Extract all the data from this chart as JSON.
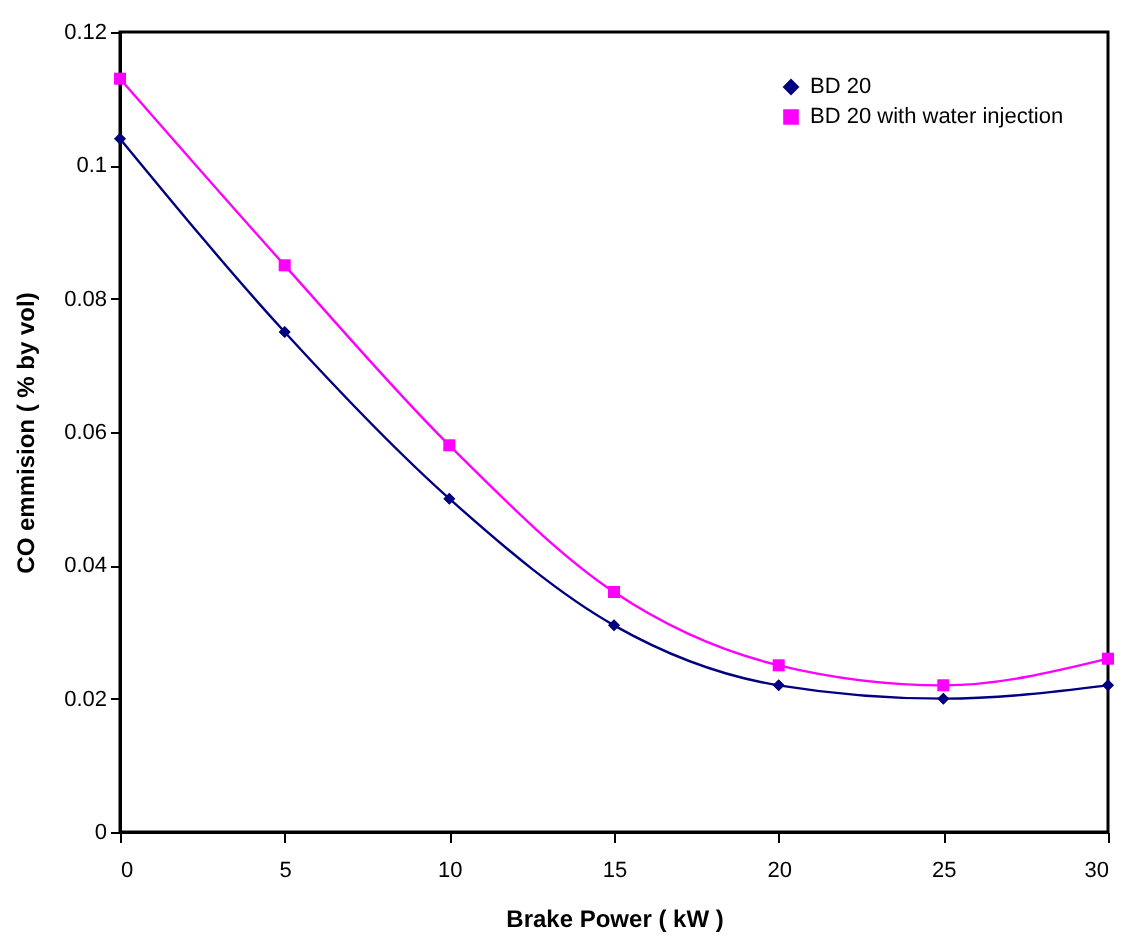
{
  "chart_data": {
    "type": "line",
    "xlabel": "Brake Power ( kW )",
    "ylabel": "CO emmision ( % by vol)",
    "x": [
      0,
      5,
      10,
      15,
      20,
      25,
      30
    ],
    "series": [
      {
        "name": "BD 20",
        "color": "#000080",
        "marker": "diamond",
        "values": [
          0.104,
          0.075,
          0.05,
          0.031,
          0.022,
          0.02,
          0.022
        ]
      },
      {
        "name": "BD 20 with water injection",
        "color": "#ff00ff",
        "marker": "square",
        "values": [
          0.113,
          0.085,
          0.058,
          0.036,
          0.025,
          0.022,
          0.026
        ]
      }
    ],
    "xlim": [
      0,
      30
    ],
    "xticks": [
      0,
      5,
      10,
      15,
      20,
      25,
      30
    ],
    "ylim": [
      0,
      0.12
    ],
    "yticks": [
      0,
      0.02,
      0.04,
      0.06,
      0.08,
      0.1,
      0.12
    ],
    "grid": false,
    "legend": "top right",
    "line_style": "solid"
  }
}
